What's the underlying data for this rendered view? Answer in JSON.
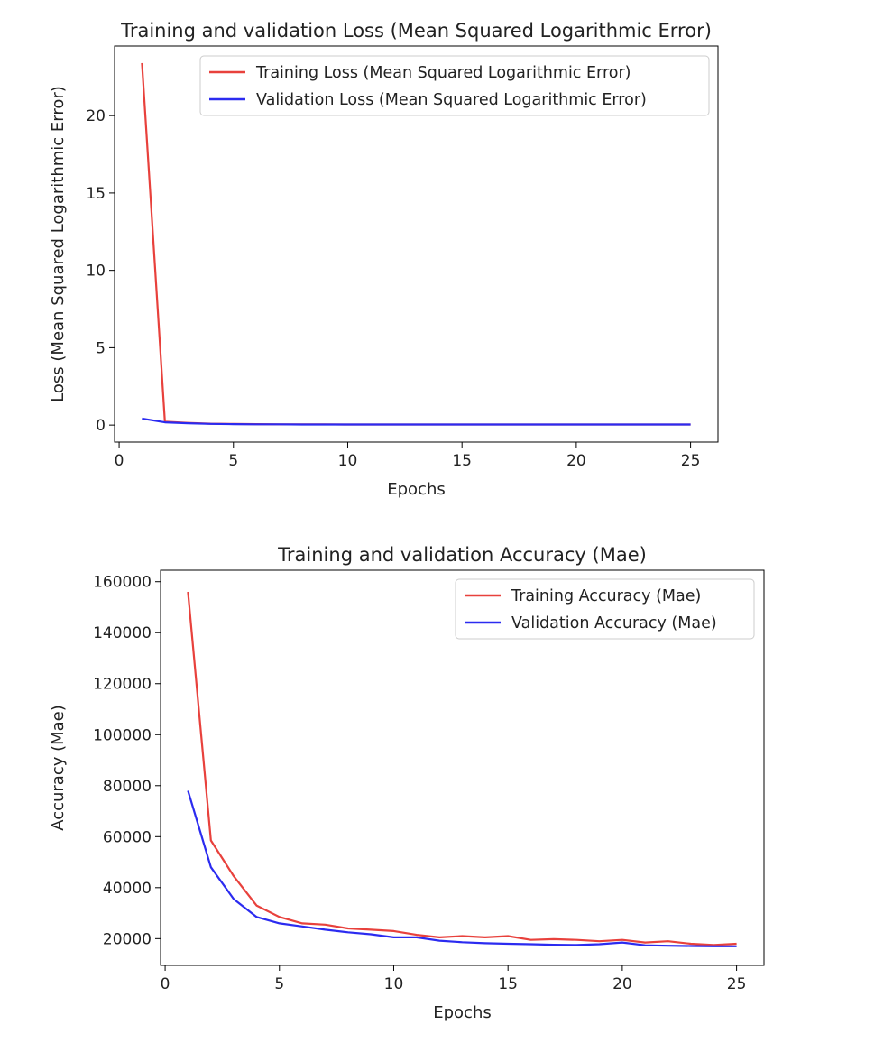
{
  "chart_data": [
    {
      "type": "line",
      "title": "Training and validation Loss (Mean Squared Logarithmic Error)",
      "xlabel": "Epochs",
      "ylabel": "Loss (Mean Squared Logarithmic Error)",
      "xlim": [
        -0.2,
        26.2
      ],
      "ylim": [
        -1.1,
        24.5
      ],
      "xticks": [
        0,
        5,
        10,
        15,
        20,
        25
      ],
      "yticks": [
        0,
        5,
        10,
        15,
        20
      ],
      "legend_position": "top-right",
      "x": [
        1,
        2,
        3,
        4,
        5,
        6,
        7,
        8,
        9,
        10,
        11,
        12,
        13,
        14,
        15,
        16,
        17,
        18,
        19,
        20,
        21,
        22,
        23,
        24,
        25
      ],
      "series": [
        {
          "name": "Training Loss (Mean Squared Logarithmic Error)",
          "color": "#e8413c",
          "values": [
            23.4,
            0.22,
            0.14,
            0.09,
            0.07,
            0.06,
            0.05,
            0.05,
            0.05,
            0.04,
            0.04,
            0.04,
            0.04,
            0.04,
            0.04,
            0.04,
            0.04,
            0.04,
            0.04,
            0.04,
            0.04,
            0.04,
            0.04,
            0.04,
            0.04
          ]
        },
        {
          "name": "Validation Loss (Mean Squared Logarithmic Error)",
          "color": "#2b2bf0",
          "values": [
            0.42,
            0.18,
            0.12,
            0.08,
            0.06,
            0.05,
            0.05,
            0.04,
            0.04,
            0.04,
            0.04,
            0.04,
            0.04,
            0.04,
            0.04,
            0.04,
            0.04,
            0.04,
            0.04,
            0.04,
            0.04,
            0.04,
            0.04,
            0.04,
            0.04
          ]
        }
      ]
    },
    {
      "type": "line",
      "title": "Training and validation Accuracy (Mae)",
      "xlabel": "Epochs",
      "ylabel": "Accuracy (Mae)",
      "xlim": [
        -0.2,
        26.2
      ],
      "ylim": [
        9500,
        164500
      ],
      "xticks": [
        0,
        5,
        10,
        15,
        20,
        25
      ],
      "yticks": [
        20000,
        40000,
        60000,
        80000,
        100000,
        120000,
        140000,
        160000
      ],
      "legend_position": "top-right",
      "x": [
        1,
        2,
        3,
        4,
        5,
        6,
        7,
        8,
        9,
        10,
        11,
        12,
        13,
        14,
        15,
        16,
        17,
        18,
        19,
        20,
        21,
        22,
        23,
        24,
        25
      ],
      "series": [
        {
          "name": "Training Accuracy (Mae)",
          "color": "#e8413c",
          "values": [
            156000,
            58500,
            44500,
            33000,
            28500,
            26000,
            25500,
            24000,
            23500,
            23000,
            21500,
            20500,
            21000,
            20500,
            21000,
            19500,
            19800,
            19500,
            19000,
            19500,
            18500,
            19000,
            18000,
            17500,
            18000
          ]
        },
        {
          "name": "Validation Accuracy (Mae)",
          "color": "#2b2bf0",
          "values": [
            78000,
            48000,
            35500,
            28500,
            26000,
            24800,
            23500,
            22500,
            21700,
            20500,
            20500,
            19200,
            18600,
            18200,
            18000,
            17800,
            17600,
            17500,
            17800,
            18500,
            17400,
            17200,
            17100,
            17000,
            17000
          ]
        }
      ]
    }
  ]
}
